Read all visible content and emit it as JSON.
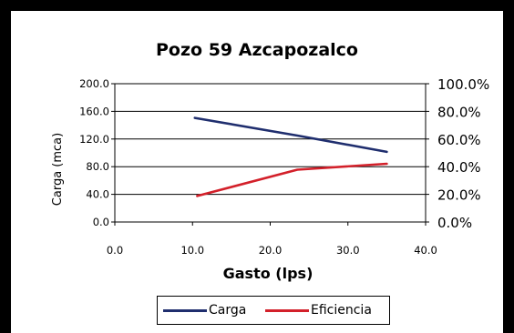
{
  "chart_data": {
    "type": "line",
    "title": "Pozo 59 Azcapozalco",
    "xlabel": "Gasto (lps)",
    "ylabel": "Carga (mca)",
    "xlim": [
      0,
      40
    ],
    "ylim": [
      0,
      200
    ],
    "y2lim": [
      0,
      1
    ],
    "x_ticks": [
      "0.0",
      "10.0",
      "20.0",
      "30.0",
      "40.0"
    ],
    "y_ticks": [
      "0.0",
      "40.0",
      "80.0",
      "120.0",
      "160.0",
      "200.0"
    ],
    "y2_ticks": [
      "0.0%",
      "20.0%",
      "40.0%",
      "60.0%",
      "80.0%",
      "100.0%"
    ],
    "legend_position": "bottom",
    "series": [
      {
        "name": "Carga",
        "axis": "left",
        "color": "#1f2e6e",
        "points": [
          [
            10.3,
            150.5
          ],
          [
            23.5,
            125.0
          ],
          [
            35.0,
            101.5
          ]
        ]
      },
      {
        "name": "Eficiencia",
        "axis": "right",
        "color": "#d3202a",
        "points": [
          [
            10.6,
            0.188
          ],
          [
            23.5,
            0.378
          ],
          [
            35.0,
            0.421
          ]
        ]
      }
    ]
  }
}
